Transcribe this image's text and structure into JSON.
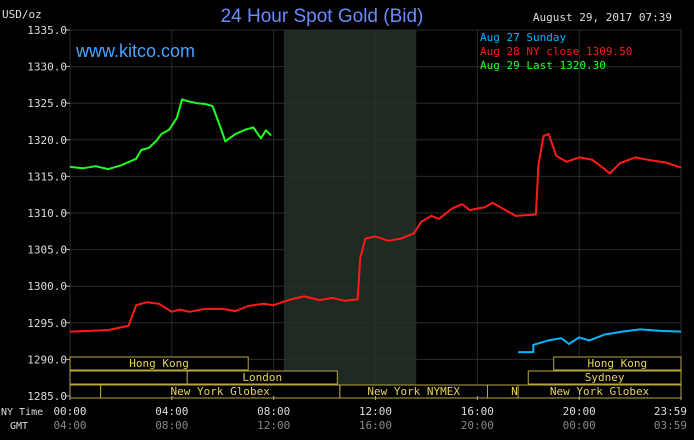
{
  "header": {
    "title": "24 Hour Spot Gold (Bid)",
    "timestamp": "August 29, 2017 07:39",
    "watermark": "www.kitco.com",
    "currency_label": "USD/oz"
  },
  "legend": [
    {
      "label": "Aug 27 Sunday",
      "color": "#00b7ff"
    },
    {
      "label": "Aug 28 NY close 1309.50",
      "color": "#ff1a1a"
    },
    {
      "label": "Aug 29 Last 1320.30",
      "color": "#20ff20"
    }
  ],
  "axis": {
    "ny_time_label": "NY Time",
    "gmt_label": "GMT",
    "ny_ticks": [
      "00:00",
      "04:00",
      "08:00",
      "12:00",
      "16:00",
      "20:00",
      "23:59"
    ],
    "gmt_ticks": [
      "04:00",
      "08:00",
      "12:00",
      "16:00",
      "20:00",
      "00:00",
      "03:59"
    ]
  },
  "sessions": [
    {
      "label": "Hong Kong"
    },
    {
      "label": "London"
    },
    {
      "label": "New York Globex"
    },
    {
      "label": "New York NYMEX"
    },
    {
      "label": "NY Globex"
    },
    {
      "label": "Hong Kong"
    },
    {
      "label": "Sydney"
    },
    {
      "label": "New York Globex"
    }
  ],
  "chart_data": {
    "type": "line",
    "title": "24 Hour Spot Gold (Bid)",
    "ylabel": "USD/oz",
    "ylim": [
      1285,
      1335
    ],
    "yticks": [
      "1335.0",
      "1330.0",
      "1325.0",
      "1320.0",
      "1315.0",
      "1310.0",
      "1305.0",
      "1300.0",
      "1295.0",
      "1290.0",
      "1285.0"
    ],
    "x_unit": "hours since 00:00 NY time",
    "xlim": [
      0,
      24
    ],
    "nymex_session_hours": [
      8.4,
      13.6
    ],
    "series": [
      {
        "name": "Aug 27 Sunday",
        "color": "#00b7ff",
        "points": [
          [
            17.6,
            1291.0
          ],
          [
            18.2,
            1291.0
          ],
          [
            18.2,
            1292.0
          ],
          [
            18.8,
            1292.6
          ],
          [
            19.3,
            1292.9
          ],
          [
            19.6,
            1292.1
          ],
          [
            20.0,
            1293.0
          ],
          [
            20.4,
            1292.6
          ],
          [
            21.0,
            1293.4
          ],
          [
            21.7,
            1293.8
          ],
          [
            22.4,
            1294.1
          ],
          [
            23.2,
            1293.9
          ],
          [
            24.0,
            1293.8
          ]
        ]
      },
      {
        "name": "Aug 28 NY close 1309.50",
        "color": "#ff1a1a",
        "points": [
          [
            0.0,
            1293.8
          ],
          [
            1.5,
            1294.0
          ],
          [
            2.3,
            1294.6
          ],
          [
            2.6,
            1297.4
          ],
          [
            3.0,
            1297.8
          ],
          [
            3.5,
            1297.6
          ],
          [
            4.0,
            1296.5
          ],
          [
            4.3,
            1296.8
          ],
          [
            4.7,
            1296.5
          ],
          [
            5.3,
            1296.9
          ],
          [
            6.0,
            1296.9
          ],
          [
            6.5,
            1296.6
          ],
          [
            7.0,
            1297.3
          ],
          [
            7.6,
            1297.6
          ],
          [
            8.0,
            1297.4
          ],
          [
            8.4,
            1297.9
          ],
          [
            8.8,
            1298.3
          ],
          [
            9.2,
            1298.6
          ],
          [
            9.8,
            1298.1
          ],
          [
            10.3,
            1298.4
          ],
          [
            10.8,
            1298.0
          ],
          [
            11.3,
            1298.2
          ],
          [
            11.4,
            1303.8
          ],
          [
            11.6,
            1306.5
          ],
          [
            12.0,
            1306.8
          ],
          [
            12.5,
            1306.2
          ],
          [
            13.0,
            1306.5
          ],
          [
            13.5,
            1307.2
          ],
          [
            13.8,
            1308.8
          ],
          [
            14.2,
            1309.6
          ],
          [
            14.5,
            1309.2
          ],
          [
            15.0,
            1310.6
          ],
          [
            15.4,
            1311.2
          ],
          [
            15.7,
            1310.4
          ],
          [
            16.3,
            1310.8
          ],
          [
            16.6,
            1311.4
          ],
          [
            17.0,
            1310.6
          ],
          [
            17.5,
            1309.6
          ],
          [
            18.3,
            1309.8
          ],
          [
            18.4,
            1316.5
          ],
          [
            18.6,
            1320.5
          ],
          [
            18.8,
            1320.8
          ],
          [
            19.1,
            1317.8
          ],
          [
            19.5,
            1317.0
          ],
          [
            20.0,
            1317.6
          ],
          [
            20.5,
            1317.3
          ],
          [
            21.0,
            1316.0
          ],
          [
            21.2,
            1315.4
          ],
          [
            21.6,
            1316.8
          ],
          [
            22.2,
            1317.6
          ],
          [
            22.8,
            1317.2
          ],
          [
            23.4,
            1316.9
          ],
          [
            24.0,
            1316.2
          ]
        ]
      },
      {
        "name": "Aug 29 Last 1320.30",
        "color": "#20ff20",
        "points": [
          [
            0.0,
            1316.3
          ],
          [
            0.5,
            1316.1
          ],
          [
            1.0,
            1316.4
          ],
          [
            1.5,
            1316.0
          ],
          [
            2.0,
            1316.5
          ],
          [
            2.6,
            1317.4
          ],
          [
            2.8,
            1318.6
          ],
          [
            3.1,
            1318.9
          ],
          [
            3.4,
            1319.9
          ],
          [
            3.6,
            1320.8
          ],
          [
            3.9,
            1321.4
          ],
          [
            4.2,
            1323.0
          ],
          [
            4.4,
            1325.5
          ],
          [
            4.7,
            1325.2
          ],
          [
            5.0,
            1325.0
          ],
          [
            5.3,
            1324.9
          ],
          [
            5.6,
            1324.6
          ],
          [
            5.9,
            1321.8
          ],
          [
            6.1,
            1319.8
          ],
          [
            6.5,
            1320.8
          ],
          [
            6.9,
            1321.4
          ],
          [
            7.2,
            1321.7
          ],
          [
            7.5,
            1320.2
          ],
          [
            7.7,
            1321.3
          ],
          [
            7.9,
            1320.6
          ]
        ]
      }
    ]
  }
}
